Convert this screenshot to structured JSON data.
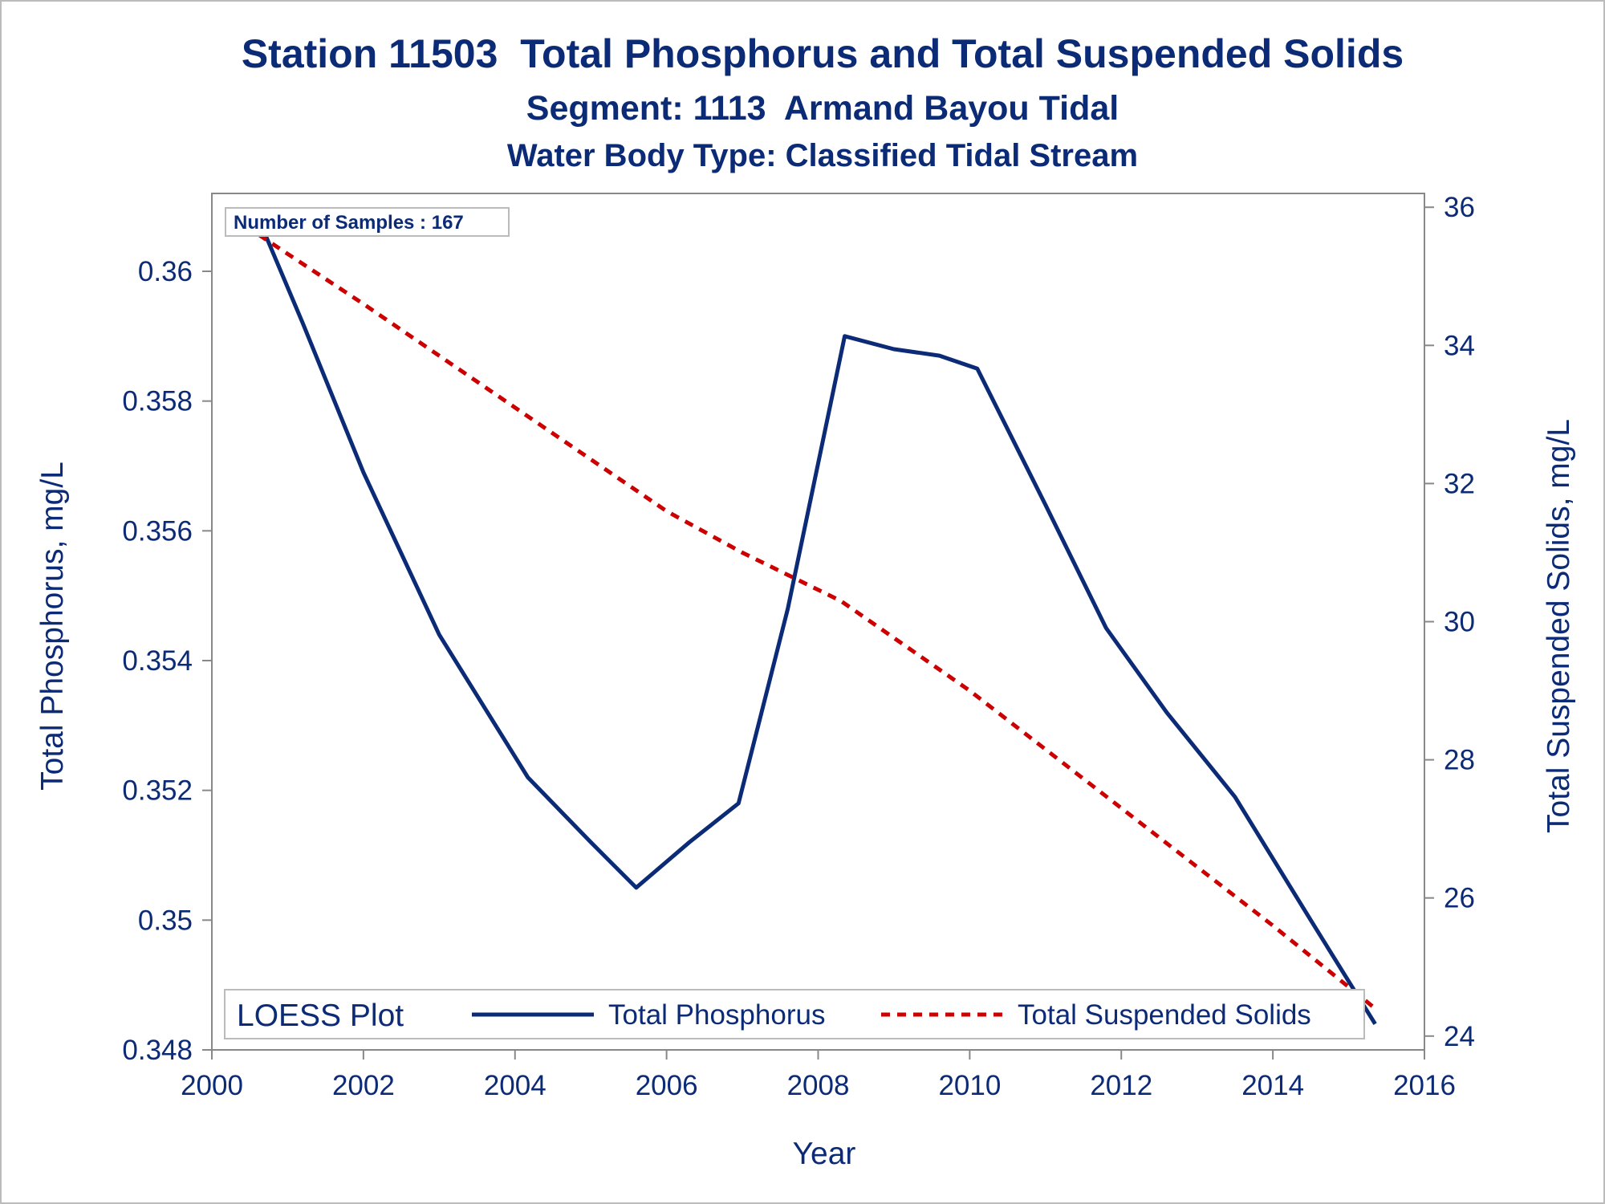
{
  "colors": {
    "text": "#0c2b77",
    "tp_line": "#0c2b77",
    "tss_line": "#cc0000",
    "axis": "#888888",
    "border": "#bbbbbb"
  },
  "chart_data": {
    "type": "line",
    "title": "Station 11503  Total Phosphorus and Total Suspended Solids",
    "subtitle": "Segment: 1113  Armand Bayou Tidal",
    "subtitle2": "Water Body Type: Classified Tidal Stream",
    "xlabel": "Year",
    "ylabel": "Total Phosphorus, mg/L",
    "y2label": "Total Suspended Solids, mg/L",
    "xlim": [
      2000,
      2016
    ],
    "ylim": [
      0.348,
      0.3612
    ],
    "y2lim": [
      23.8,
      36.2
    ],
    "x_ticks": [
      "2000",
      "2002",
      "2004",
      "2006",
      "2008",
      "2010",
      "2012",
      "2014",
      "2016"
    ],
    "y_ticks": [
      "0.348",
      "0.35",
      "0.352",
      "0.354",
      "0.356",
      "0.358",
      "0.36"
    ],
    "y2_ticks": [
      "24",
      "26",
      "28",
      "30",
      "32",
      "34",
      "36"
    ],
    "grid": false,
    "annotation": "Number of Samples : 167",
    "legend": {
      "title": "LOESS Plot",
      "placement": "bottom-inside",
      "entries": [
        "Total Phosphorus",
        "Total Suspended Solids"
      ]
    },
    "series": [
      {
        "name": "Total Phosphorus",
        "axis": "left",
        "style": "solid",
        "points": [
          [
            2000.62,
            0.3608
          ],
          [
            2001.2,
            0.3592
          ],
          [
            2002.0,
            0.3569
          ],
          [
            2003.0,
            0.3544
          ],
          [
            2004.17,
            0.3522
          ],
          [
            2005.0,
            0.3512
          ],
          [
            2005.6,
            0.3505
          ],
          [
            2006.3,
            0.3512
          ],
          [
            2006.95,
            0.3518
          ],
          [
            2007.6,
            0.3548
          ],
          [
            2008.35,
            0.359
          ],
          [
            2009.0,
            0.3588
          ],
          [
            2009.6,
            0.3587
          ],
          [
            2010.1,
            0.3585
          ],
          [
            2011.0,
            0.3564
          ],
          [
            2011.8,
            0.3545
          ],
          [
            2012.6,
            0.3532
          ],
          [
            2013.5,
            0.3519
          ],
          [
            2014.5,
            0.35
          ],
          [
            2015.35,
            0.3484
          ]
        ]
      },
      {
        "name": "Total Suspended Solids",
        "axis": "right",
        "style": "dashed",
        "points": [
          [
            2000.62,
            35.6
          ],
          [
            2002.0,
            34.6
          ],
          [
            2004.0,
            33.1
          ],
          [
            2006.0,
            31.6
          ],
          [
            2007.0,
            31.0
          ],
          [
            2008.3,
            30.3
          ],
          [
            2010.0,
            29.0
          ],
          [
            2012.0,
            27.3
          ],
          [
            2014.0,
            25.6
          ],
          [
            2015.35,
            24.4
          ]
        ]
      }
    ]
  }
}
